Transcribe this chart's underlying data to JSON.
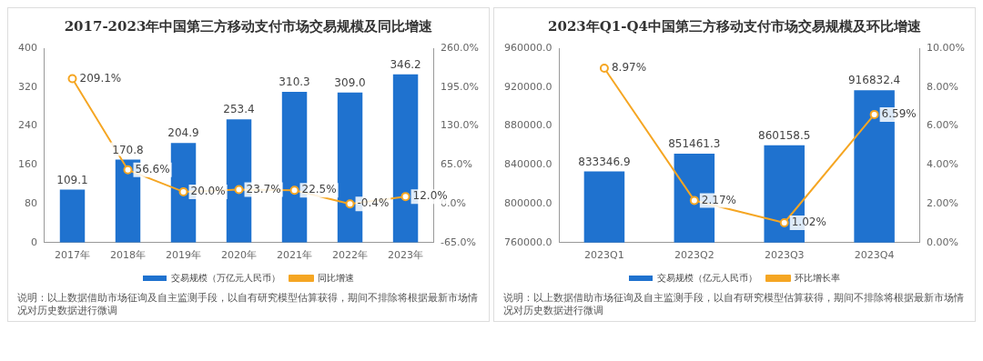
{
  "chart_data": [
    {
      "type": "bar",
      "title": "2017-2023年中国第三方移动支付市场交易规模及同比增速",
      "categories": [
        "2017年",
        "2018年",
        "2019年",
        "2020年",
        "2021年",
        "2022年",
        "2023年"
      ],
      "series": [
        {
          "name": "交易规模（万亿元人民币）",
          "color": "#1f72cf",
          "values": [
            109.1,
            170.8,
            204.9,
            253.4,
            310.3,
            309.0,
            346.2
          ],
          "value_labels": [
            "109.1",
            "170.8",
            "204.9",
            "253.4",
            "310.3",
            "309.0",
            "346.2"
          ]
        },
        {
          "name": "同比增速",
          "type": "line",
          "axis": "y2",
          "color": "#f5a623",
          "values": [
            209.1,
            56.6,
            20.0,
            23.7,
            22.5,
            -0.4,
            12.0
          ],
          "value_labels": [
            "209.1%",
            "56.6%",
            "20.0%",
            "23.7%",
            "22.5%",
            "-0.4%",
            "12.0%"
          ]
        }
      ],
      "ylim": [
        0,
        400
      ],
      "yticks": [
        0,
        80,
        160,
        240,
        320,
        400
      ],
      "y2lim": [
        -65,
        260
      ],
      "y2ticks": [
        {
          "value": -65,
          "label": "-65.0%"
        },
        {
          "value": 0,
          "label": "0.0%"
        },
        {
          "value": 65,
          "label": "65.0%"
        },
        {
          "value": 130,
          "label": "130.0%"
        },
        {
          "value": 195,
          "label": "195.0%"
        },
        {
          "value": 260,
          "label": "260.0%"
        }
      ],
      "marker": "circle",
      "legend": "bottom",
      "annotations": [
        "说明：以上数据借助市场征询及自主监测手段，以自有研究模型估算获得，期间不排除将根据最新市场情况对历史数据进行微调"
      ]
    },
    {
      "type": "bar",
      "title": "2023年Q1-Q4中国第三方移动支付市场交易规模及环比增速",
      "categories": [
        "2023Q1",
        "2023Q2",
        "2023Q3",
        "2023Q4"
      ],
      "series": [
        {
          "name": "交易规模（亿元人民币）",
          "color": "#1f72cf",
          "values": [
            833346.9,
            851461.3,
            860158.5,
            916832.4
          ],
          "value_labels": [
            "833346.9",
            "851461.3",
            "860158.5",
            "916832.4"
          ]
        },
        {
          "name": "环比增长率",
          "type": "line",
          "axis": "y2",
          "color": "#f5a623",
          "values": [
            8.97,
            2.17,
            1.02,
            6.59
          ],
          "value_labels": [
            "8.97%",
            "2.17%",
            "1.02%",
            "6.59%"
          ]
        }
      ],
      "ylim": [
        760000,
        960000
      ],
      "yticks": [
        {
          "value": 760000,
          "label": "760000.0"
        },
        {
          "value": 800000,
          "label": "800000.0"
        },
        {
          "value": 840000,
          "label": "840000.0"
        },
        {
          "value": 880000,
          "label": "880000.0"
        },
        {
          "value": 920000,
          "label": "920000.0"
        },
        {
          "value": 960000,
          "label": "960000.0"
        }
      ],
      "y2lim": [
        0,
        10
      ],
      "y2ticks": [
        {
          "value": 0,
          "label": "0.00%"
        },
        {
          "value": 2,
          "label": "2.00%"
        },
        {
          "value": 4,
          "label": "4.00%"
        },
        {
          "value": 6,
          "label": "6.00%"
        },
        {
          "value": 8,
          "label": "8.00%"
        },
        {
          "value": 10,
          "label": "10.00%"
        }
      ],
      "marker": "circle",
      "legend": "bottom",
      "annotations": [
        "说明：以上数据借助市场征询及自主监测手段，以自有研究模型估算获得，期间不排除将根据最新市场情况对历史数据进行微调"
      ]
    }
  ]
}
